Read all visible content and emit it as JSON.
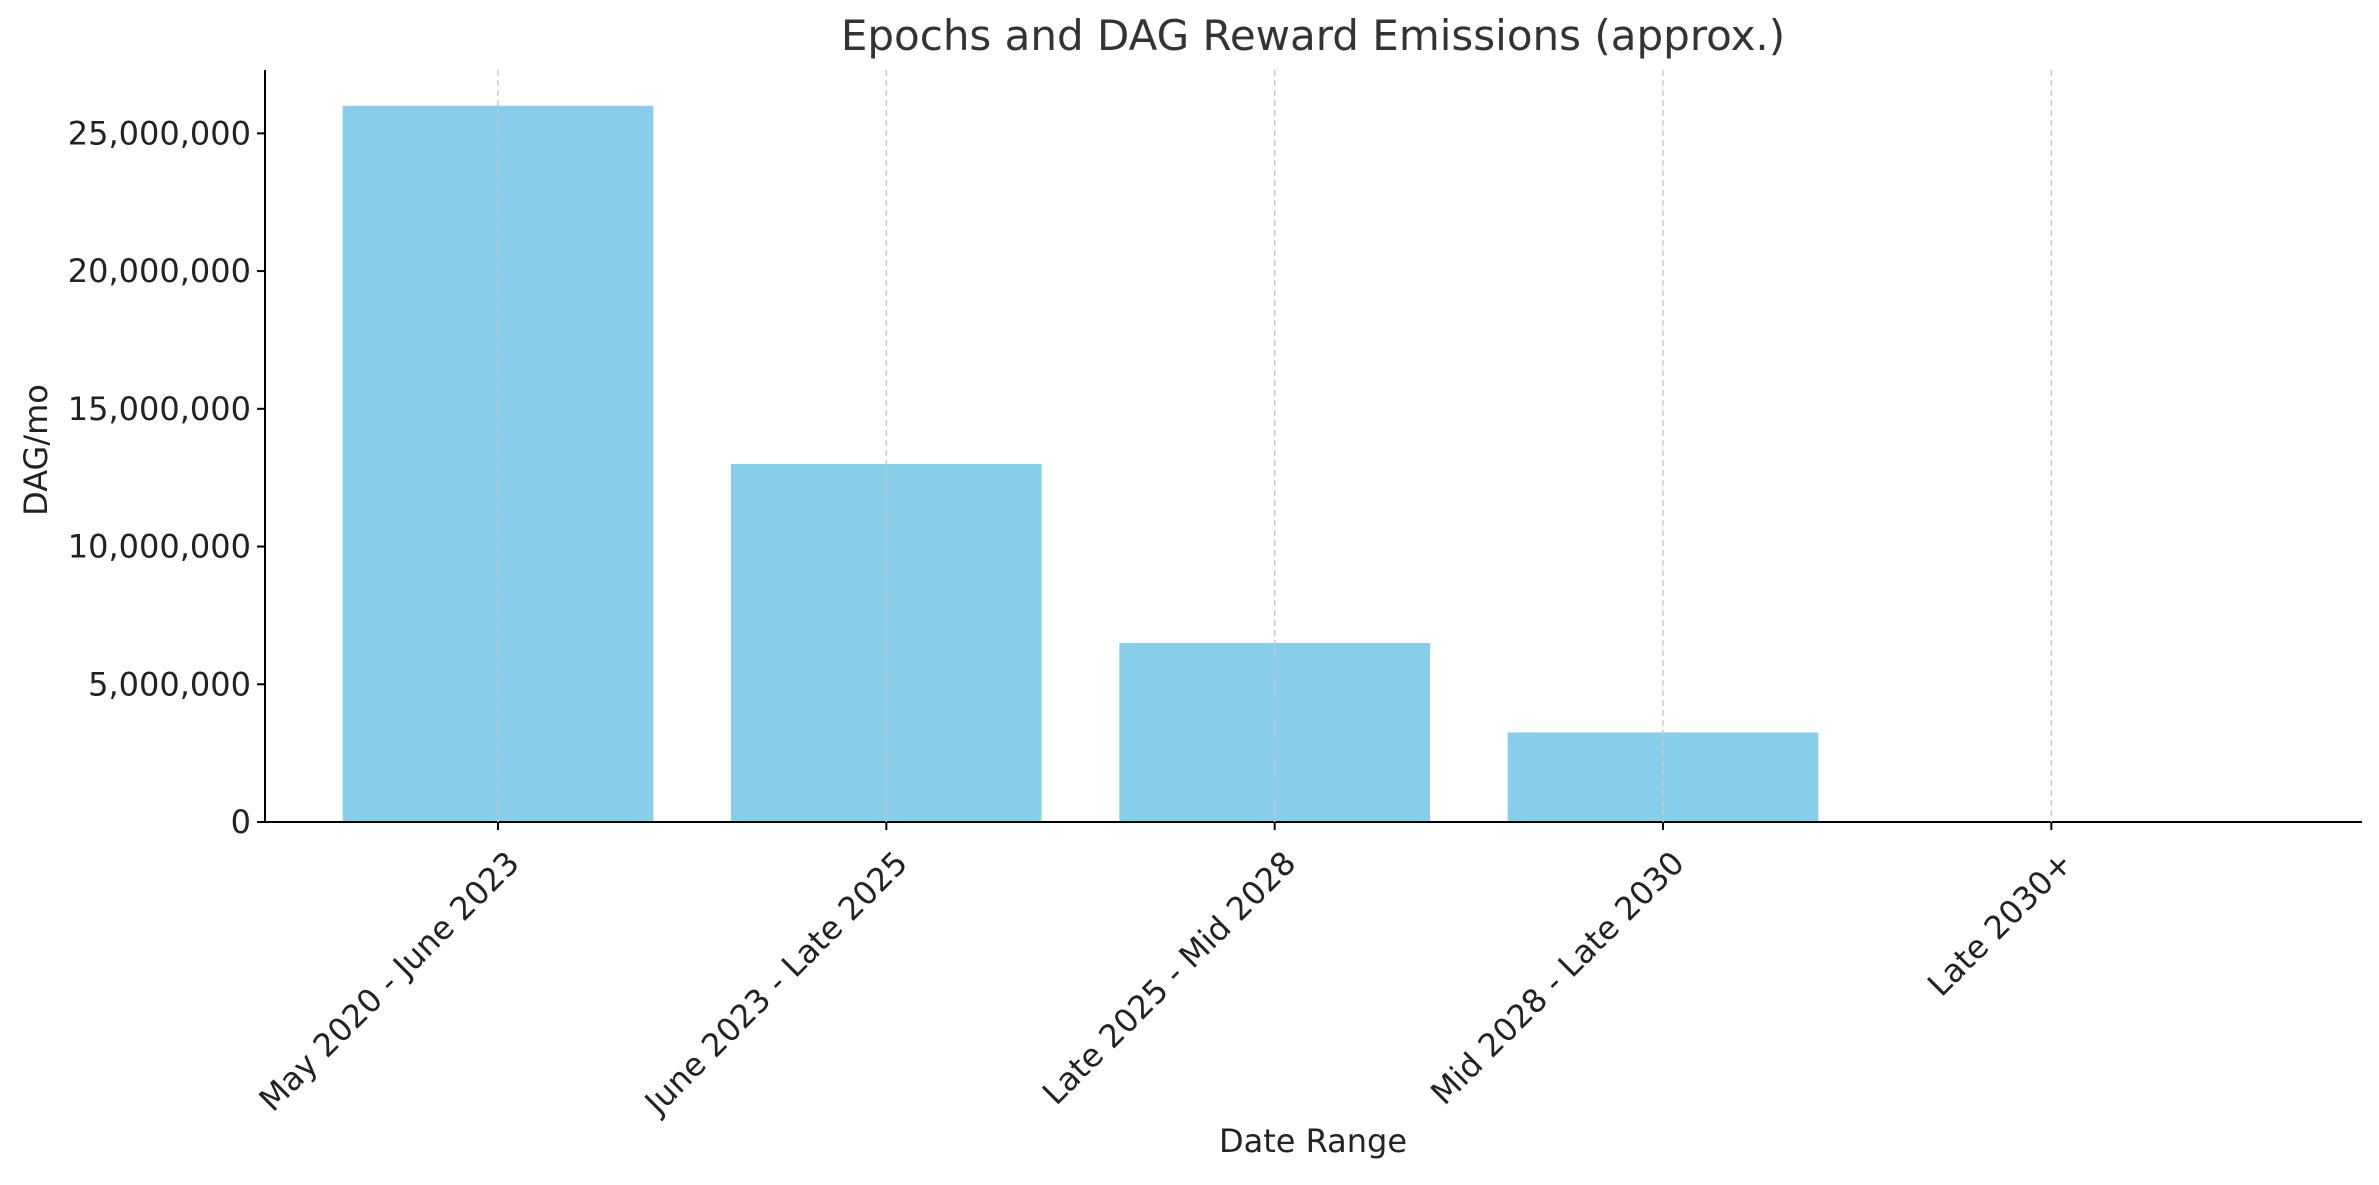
{
  "chart_data": {
    "type": "bar",
    "title": "Epochs and DAG Reward Emissions (approx.)",
    "xlabel": "Date Range",
    "ylabel": "DAG/mo",
    "categories": [
      "May 2020 - June 2023",
      "June 2023 - Late 2025",
      "Late 2025 - Mid 2028",
      "Mid 2028 - Late 2030",
      "Late 2030+"
    ],
    "values": [
      26000000,
      13000000,
      6500000,
      3250000,
      0
    ],
    "ylim": [
      0,
      27300000
    ],
    "yticks": [
      0,
      5000000,
      10000000,
      15000000,
      20000000,
      25000000
    ],
    "ytick_labels": [
      "0",
      "5,000,000",
      "10,000,000",
      "15,000,000",
      "20,000,000",
      "25,000,000"
    ],
    "grid": "x-dashed",
    "colors": {
      "bar": "#87ceeb",
      "grid": "#c8c8c8",
      "axis": "#000000"
    }
  }
}
